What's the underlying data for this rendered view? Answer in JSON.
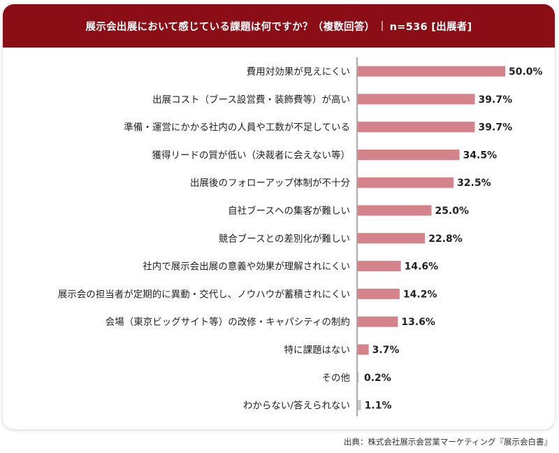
{
  "header": {
    "question": "展示会出展において感じている課題は何ですか？（複数回答）",
    "separator": "|",
    "sample": "n=536 [出展者]"
  },
  "chart_data": {
    "type": "bar",
    "orientation": "horizontal",
    "title": "展示会出展において感じている課題は何ですか？（複数回答）",
    "xlim": [
      0,
      50
    ],
    "categories": [
      "費用対効果が見えにくい",
      "出展コスト（ブース設営費・装飾費等）が高い",
      "準備・運営にかかる社内の人員や工数が不足している",
      "獲得リードの質が低い（決裁者に会えない等）",
      "出展後のフォローアップ体制が不十分",
      "自社ブースへの集客が難しい",
      "競合ブースとの差別化が難しい",
      "社内で展示会出展の意義や効果が理解されにくい",
      "展示会の担当者が定期的に異動・交代し、ノウハウが蓄積されにくい",
      "会場（東京ビッグサイト等）の改修・キャパシティの制約",
      "特に課題はない",
      "その他",
      "わからない/答えられない"
    ],
    "values": [
      50.0,
      39.7,
      39.7,
      34.5,
      32.5,
      25.0,
      22.8,
      14.6,
      14.2,
      13.6,
      3.7,
      0.2,
      1.1
    ],
    "value_labels": [
      "50.0%",
      "39.7%",
      "39.7%",
      "34.5%",
      "32.5%",
      "25.0%",
      "22.8%",
      "14.6%",
      "14.2%",
      "13.6%",
      "3.7%",
      "0.2%",
      "1.1%"
    ],
    "bar_color": "#d4838b",
    "muted_bar_color": "#c8c8c8",
    "muted_from_index": 11
  },
  "source": "出典：株式会社展示会営業マーケティング『展示会白書』",
  "colors": {
    "header_bg": "#8b0d16",
    "axis": "#555555"
  }
}
